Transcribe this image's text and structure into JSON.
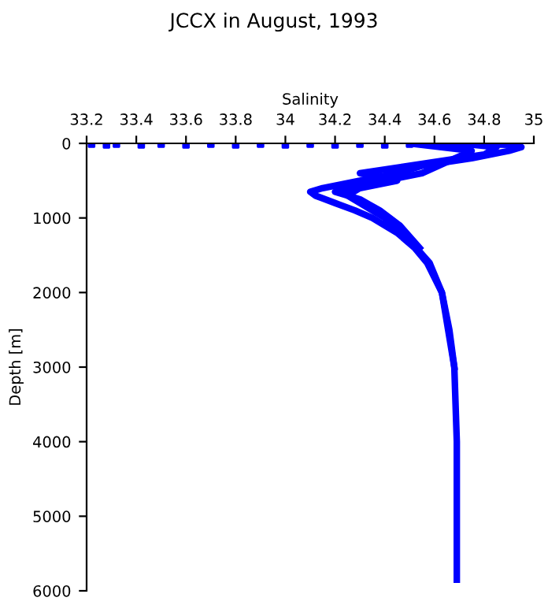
{
  "chart_data": {
    "type": "line",
    "title": "JCCX in August, 1993",
    "xlabel": "Salinity",
    "ylabel": "Depth [m]",
    "xlim": [
      33.2,
      35
    ],
    "xticks": [
      33.2,
      33.4,
      33.6,
      33.8,
      34,
      34.2,
      34.4,
      34.6,
      34.8,
      35
    ],
    "ylim": [
      6000,
      0
    ],
    "yticks": [
      0,
      1000,
      2000,
      3000,
      4000,
      5000,
      6000
    ],
    "grid": false,
    "legend": false,
    "series": [
      {
        "color": "#0000ff",
        "x": [
          34.6,
          34.9,
          34.95,
          34.9,
          34.75,
          34.55,
          34.45,
          34.3,
          34.15,
          34.1,
          34.12,
          34.2,
          34.28,
          34.35,
          34.45,
          34.52,
          34.57,
          34.6,
          34.63,
          34.66,
          34.68,
          34.685,
          34.69,
          34.69,
          34.69
        ],
        "values": [
          0,
          20,
          50,
          100,
          200,
          300,
          400,
          500,
          600,
          650,
          700,
          800,
          900,
          1000,
          1200,
          1400,
          1600,
          1800,
          2000,
          2500,
          3000,
          3500,
          4000,
          5000,
          5850
        ]
      },
      {
        "color": "#0000ff",
        "x": [
          34.7,
          34.85,
          34.8,
          34.5,
          34.3,
          34.45,
          34.3,
          34.25,
          34.3,
          34.4,
          34.5,
          34.58,
          34.63,
          34.68
        ],
        "values": [
          0,
          50,
          150,
          300,
          400,
          500,
          600,
          700,
          800,
          1000,
          1300,
          1600,
          2000,
          3000
        ]
      },
      {
        "color": "#0000ff",
        "x": [
          34.5,
          34.75,
          34.65,
          34.55,
          34.4,
          34.2,
          34.3,
          34.38,
          34.46,
          34.54
        ],
        "values": [
          0,
          100,
          250,
          400,
          500,
          650,
          750,
          900,
          1100,
          1400
        ]
      },
      {
        "type": "scatter",
        "color": "#0000ff",
        "x": [
          33.22,
          33.28,
          33.32,
          33.42,
          33.5,
          33.6,
          33.7,
          33.8,
          33.9,
          34.0,
          34.1,
          34.2,
          34.3,
          34.4,
          34.5
        ],
        "values": [
          10,
          20,
          10,
          20,
          10,
          20,
          10,
          20,
          10,
          20,
          10,
          20,
          10,
          20,
          10
        ]
      }
    ]
  }
}
